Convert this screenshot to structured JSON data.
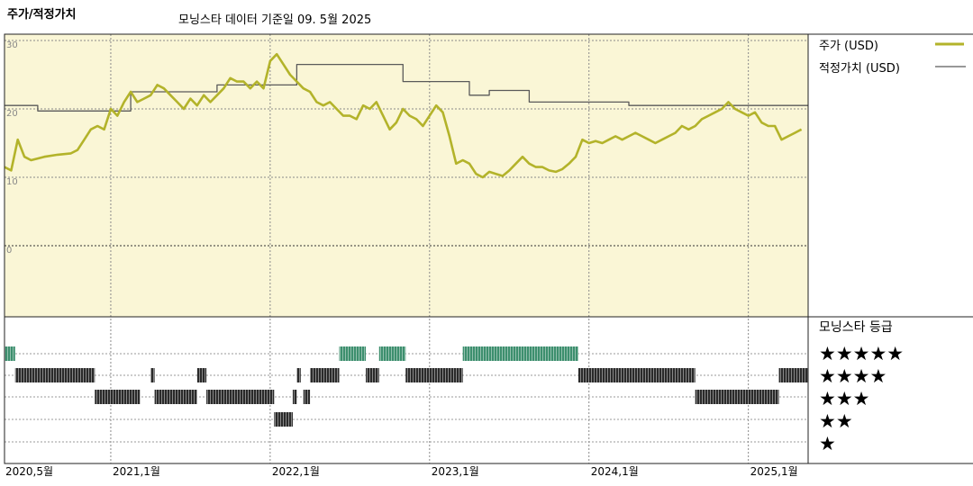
{
  "chart_data": {
    "type": "line",
    "title": "주가/적정가치",
    "subtitle": "모닝스타 데이터 기준일 09. 5월 2025",
    "yticks": [
      "30",
      "20",
      "10",
      "0"
    ],
    "ylim": [
      0,
      32
    ],
    "xticks": [
      {
        "t": 0,
        "label": "2020,5월"
      },
      {
        "t": 8,
        "label": "2021,1월"
      },
      {
        "t": 20,
        "label": "2022,1월"
      },
      {
        "t": 32,
        "label": "2023,1월"
      },
      {
        "t": 44,
        "label": "2024,1월"
      },
      {
        "t": 56,
        "label": "2025,1월"
      }
    ],
    "xlim": [
      0,
      60.5
    ],
    "series": [
      {
        "name": "주가 (USD)",
        "color": "#b3b32a",
        "points": [
          [
            0,
            11.5
          ],
          [
            0.5,
            11
          ],
          [
            1,
            15.5
          ],
          [
            1.5,
            13
          ],
          [
            2,
            12.5
          ],
          [
            3,
            13
          ],
          [
            4,
            13.3
          ],
          [
            5,
            13.5
          ],
          [
            5.5,
            14
          ],
          [
            6,
            15.5
          ],
          [
            6.5,
            17
          ],
          [
            7,
            17.5
          ],
          [
            7.5,
            17
          ],
          [
            8,
            20
          ],
          [
            8.5,
            19
          ],
          [
            9,
            21
          ],
          [
            9.5,
            22.5
          ],
          [
            10,
            21
          ],
          [
            10.5,
            21.5
          ],
          [
            11,
            22
          ],
          [
            11.5,
            23.5
          ],
          [
            12,
            23
          ],
          [
            12.5,
            22
          ],
          [
            13,
            21
          ],
          [
            13.5,
            20
          ],
          [
            14,
            21.5
          ],
          [
            14.5,
            20.5
          ],
          [
            15,
            22
          ],
          [
            15.5,
            21
          ],
          [
            16,
            22
          ],
          [
            16.5,
            23
          ],
          [
            17,
            24.5
          ],
          [
            17.5,
            24
          ],
          [
            18,
            24
          ],
          [
            18.5,
            23
          ],
          [
            19,
            24
          ],
          [
            19.5,
            23
          ],
          [
            20,
            27
          ],
          [
            20.5,
            28
          ],
          [
            21,
            26.5
          ],
          [
            21.5,
            25
          ],
          [
            22,
            24
          ],
          [
            22.5,
            23
          ],
          [
            23,
            22.5
          ],
          [
            23.5,
            21
          ],
          [
            24,
            20.5
          ],
          [
            24.5,
            21
          ],
          [
            25,
            20
          ],
          [
            25.5,
            19
          ],
          [
            26,
            19
          ],
          [
            26.5,
            18.5
          ],
          [
            27,
            20.5
          ],
          [
            27.5,
            20
          ],
          [
            28,
            21
          ],
          [
            28.5,
            19
          ],
          [
            29,
            17
          ],
          [
            29.5,
            18
          ],
          [
            30,
            20
          ],
          [
            30.5,
            19
          ],
          [
            31,
            18.5
          ],
          [
            31.5,
            17.5
          ],
          [
            32,
            19
          ],
          [
            32.5,
            20.5
          ],
          [
            33,
            19.5
          ],
          [
            33.5,
            16
          ],
          [
            34,
            12
          ],
          [
            34.5,
            12.5
          ],
          [
            35,
            12
          ],
          [
            35.5,
            10.5
          ],
          [
            36,
            10
          ],
          [
            36.5,
            10.8
          ],
          [
            37,
            10.5
          ],
          [
            37.5,
            10.2
          ],
          [
            38,
            11
          ],
          [
            38.5,
            12
          ],
          [
            39,
            13
          ],
          [
            39.5,
            12
          ],
          [
            40,
            11.5
          ],
          [
            40.5,
            11.5
          ],
          [
            41,
            11
          ],
          [
            41.5,
            10.8
          ],
          [
            42,
            11.2
          ],
          [
            42.5,
            12
          ],
          [
            43,
            13
          ],
          [
            43.5,
            15.5
          ],
          [
            44,
            15
          ],
          [
            44.5,
            15.3
          ],
          [
            45,
            15
          ],
          [
            45.5,
            15.5
          ],
          [
            46,
            16
          ],
          [
            46.5,
            15.5
          ],
          [
            47,
            16
          ],
          [
            47.5,
            16.5
          ],
          [
            48,
            16
          ],
          [
            48.5,
            15.5
          ],
          [
            49,
            15
          ],
          [
            49.5,
            15.5
          ],
          [
            50,
            16
          ],
          [
            50.5,
            16.5
          ],
          [
            51,
            17.5
          ],
          [
            51.5,
            17
          ],
          [
            52,
            17.5
          ],
          [
            52.5,
            18.5
          ],
          [
            53,
            19
          ],
          [
            53.5,
            19.5
          ],
          [
            54,
            20
          ],
          [
            54.5,
            21
          ],
          [
            55,
            20
          ],
          [
            55.5,
            19.5
          ],
          [
            56,
            19
          ],
          [
            56.5,
            19.5
          ],
          [
            57,
            18
          ],
          [
            57.5,
            17.5
          ],
          [
            58,
            17.5
          ],
          [
            58.5,
            15.5
          ],
          [
            59,
            16
          ],
          [
            59.5,
            16.5
          ],
          [
            60,
            17
          ]
        ]
      },
      {
        "name": "적정가치 (USD)",
        "color": "#5a5a5a",
        "points": [
          [
            0,
            20.5
          ],
          [
            2.5,
            20.5
          ],
          [
            2.5,
            19.7
          ],
          [
            9.5,
            19.7
          ],
          [
            9.5,
            22.5
          ],
          [
            16,
            22.5
          ],
          [
            16,
            23.5
          ],
          [
            22,
            23.5
          ],
          [
            22,
            26.5
          ],
          [
            30,
            26.5
          ],
          [
            30,
            24
          ],
          [
            35,
            24
          ],
          [
            35,
            22
          ],
          [
            36.5,
            22
          ],
          [
            36.5,
            22.7
          ],
          [
            39.5,
            22.7
          ],
          [
            39.5,
            21
          ],
          [
            47,
            21
          ],
          [
            47,
            20.5
          ],
          [
            60.5,
            20.5
          ]
        ]
      }
    ],
    "ratings": {
      "title": "모닝스타 등급",
      "levels": [
        {
          "stars": "★★★★★",
          "color": "#3d8f6e",
          "segments": [
            [
              0,
              0.8
            ],
            [
              25.2,
              27.2
            ],
            [
              28.2,
              30.2
            ],
            [
              34.5,
              43.2
            ]
          ]
        },
        {
          "stars": "★★★★",
          "color": "#2a2a2a",
          "segments": [
            [
              0.8,
              6.8
            ],
            [
              11,
              11.3
            ],
            [
              14.5,
              15.2
            ],
            [
              22,
              22.3
            ],
            [
              23,
              25.2
            ],
            [
              27.2,
              28.2
            ],
            [
              30.2,
              34.5
            ],
            [
              43.2,
              52
            ],
            [
              58.3,
              60.5
            ]
          ]
        },
        {
          "stars": "★★★",
          "color": "#2a2a2a",
          "segments": [
            [
              6.8,
              10.2
            ],
            [
              11.3,
              14.5
            ],
            [
              15.2,
              20.3
            ],
            [
              21.7,
              22
            ],
            [
              22.5,
              23
            ],
            [
              52,
              58.3
            ]
          ]
        },
        {
          "stars": "★★",
          "color": "#2a2a2a",
          "segments": [
            [
              20.3,
              21.7
            ]
          ]
        },
        {
          "stars": "★",
          "color": "#2a2a2a",
          "segments": []
        }
      ]
    }
  }
}
